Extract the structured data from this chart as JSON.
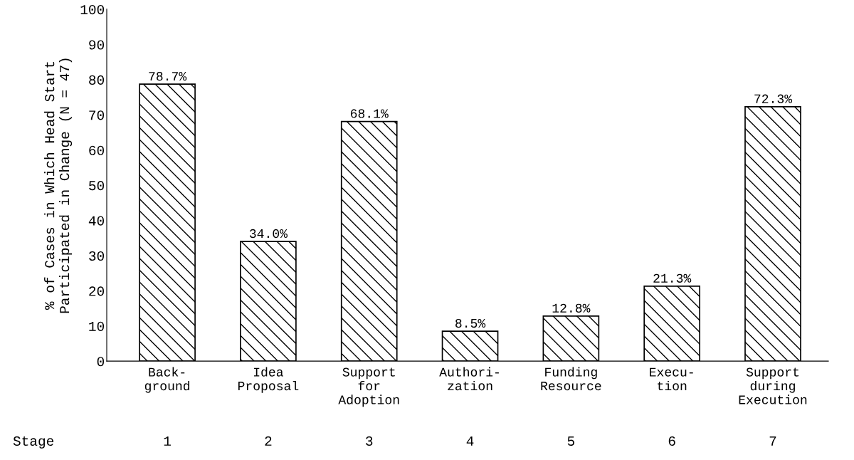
{
  "chart_data": {
    "type": "bar",
    "ylabel": "% of Cases in Which Head Start\nParticipated in Change (N = 47)",
    "categories": [
      "Back-\nground",
      "Idea\nProposal",
      "Support\nfor\nAdoption",
      "Authori-\nzation",
      "Funding\nResource",
      "Execu-\ntion",
      "Support\nduring\nExecution"
    ],
    "values": [
      78.7,
      34.0,
      68.1,
      8.5,
      12.8,
      21.3,
      72.3
    ],
    "value_labels": [
      "78.7%",
      "34.0%",
      "68.1%",
      "8.5%",
      "12.8%",
      "21.3%",
      "72.3%"
    ],
    "color": "#000000",
    "ylim": [
      0,
      100
    ],
    "yticks": [
      0,
      10,
      20,
      30,
      40,
      50,
      60,
      70,
      80,
      90,
      100
    ],
    "grid": false,
    "legend": false,
    "annotations": [
      "Stage",
      "1",
      "2",
      "3",
      "4",
      "5",
      "6",
      "7"
    ]
  }
}
